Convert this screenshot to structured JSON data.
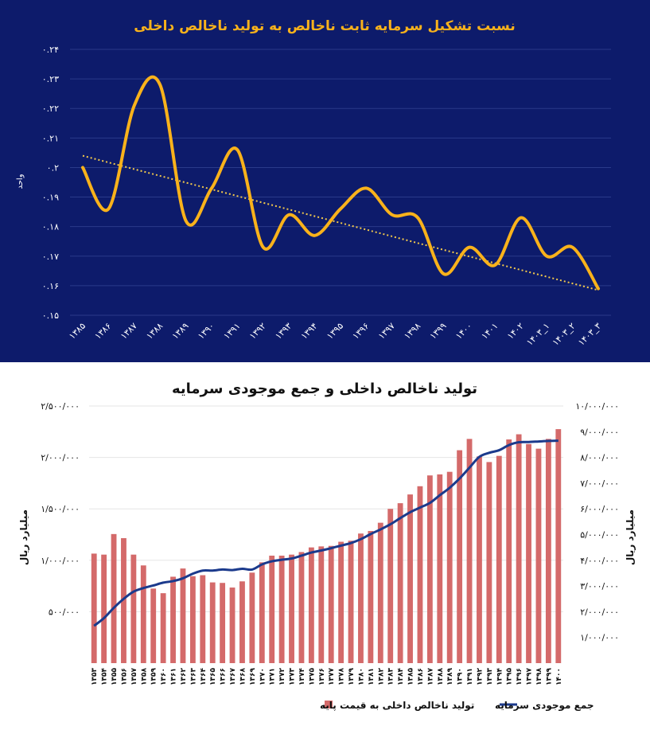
{
  "chart_data": [
    {
      "type": "line",
      "title": "نسبت تشکیل سرمایه ثابت ناخالص به تولید ناخالص داخلی",
      "ylabel": "واحد",
      "ylim": [
        0.15,
        0.24
      ],
      "ytick_labels": [
        "۰.۲۴",
        "۰.۲۳",
        "۰.۲۲",
        "۰.۲۱",
        "۰.۲",
        "۰.۱۹",
        "۰.۱۸",
        "۰.۱۷",
        "۰.۱۶",
        "۰.۱۵"
      ],
      "categories": [
        "۱۳۸۵",
        "۱۳۸۶",
        "۱۳۸۷",
        "۱۳۸۸",
        "۱۳۸۹",
        "۱۳۹۰",
        "۱۳۹۱",
        "۱۳۹۲",
        "۱۳۹۳",
        "۱۳۹۴",
        "۱۳۹۵",
        "۱۳۹۶",
        "۱۳۹۷",
        "۱۳۹۸",
        "۱۳۹۹",
        "۱۴۰۰",
        "۱۴۰۱",
        "۱۴۰۲",
        "۱۴۰۳_۱",
        "۱۴۰۳_۲",
        "۱۴۰۳_۳"
      ],
      "values": [
        0.2,
        0.186,
        0.221,
        0.228,
        0.182,
        0.193,
        0.206,
        0.173,
        0.184,
        0.177,
        0.186,
        0.193,
        0.184,
        0.183,
        0.164,
        0.173,
        0.167,
        0.183,
        0.17,
        0.173,
        0.159
      ],
      "trendline": [
        0.204,
        0.1585
      ],
      "colors": {
        "background": "#0d1b6b",
        "line": "#f9b21b",
        "trend": "#f2c94c",
        "text": "#ffffff",
        "title": "#f9b21b"
      },
      "grid": true
    },
    {
      "type": "bar",
      "title": "تولید ناخالص داخلی و جمع موجودی سرمایه",
      "left_ylabel": "میلیارد ریال",
      "right_ylabel": "میلیارد ریال",
      "left_ylim": [
        0,
        2500000
      ],
      "right_ylim": [
        0,
        10000000
      ],
      "left_tick_labels": [
        "۵۰۰/۰۰۰",
        "۱/۰۰۰/۰۰۰",
        "۱/۵۰۰/۰۰۰",
        "۲/۰۰۰/۰۰۰",
        "۲/۵۰۰/۰۰۰"
      ],
      "right_tick_labels": [
        "۱/۰۰۰/۰۰۰",
        "۲/۰۰۰/۰۰۰",
        "۳/۰۰۰/۰۰۰",
        "۴/۰۰۰/۰۰۰",
        "۵/۰۰۰/۰۰۰",
        "۶/۰۰۰/۰۰۰",
        "۷/۰۰۰/۰۰۰",
        "۸/۰۰۰/۰۰۰",
        "۹/۰۰۰/۰۰۰",
        "۱۰/۰۰۰/۰۰۰"
      ],
      "categories": [
        "۱۳۵۳",
        "۱۳۵۴",
        "۱۳۵۵",
        "۱۳۵۶",
        "۱۳۵۷",
        "۱۳۵۸",
        "۱۳۵۹",
        "۱۳۶۰",
        "۱۳۶۱",
        "۱۳۶۲",
        "۱۳۶۳",
        "۱۳۶۴",
        "۱۳۶۵",
        "۱۳۶۶",
        "۱۳۶۷",
        "۱۳۶۸",
        "۱۳۶۹",
        "۱۳۷۰",
        "۱۳۷۱",
        "۱۳۷۲",
        "۱۳۷۳",
        "۱۳۷۴",
        "۱۳۷۵",
        "۱۳۷۶",
        "۱۳۷۷",
        "۱۳۷۸",
        "۱۳۷۹",
        "۱۳۸۰",
        "۱۳۸۱",
        "۱۳۸۲",
        "۱۳۸۳",
        "۱۳۸۴",
        "۱۳۸۵",
        "۱۳۸۶",
        "۱۳۸۷",
        "۱۳۸۸",
        "۱۳۸۹",
        "۱۳۹۰",
        "۱۳۹۱",
        "۱۳۹۲",
        "۱۳۹۳",
        "۱۳۹۴",
        "۱۳۹۵",
        "۱۳۹۶",
        "۱۳۹۷",
        "۱۳۹۸",
        "۱۳۹۹",
        "۱۴۰۰"
      ],
      "series": [
        {
          "name": "تولید ناخالص داخلی به قیمت پایه",
          "axis": "left",
          "color": "#d46a6a",
          "values": [
            1065000,
            1055000,
            1255000,
            1215000,
            1055000,
            950000,
            725000,
            680000,
            840000,
            920000,
            845000,
            855000,
            785000,
            780000,
            735000,
            795000,
            880000,
            980000,
            1045000,
            1045000,
            1055000,
            1080000,
            1125000,
            1135000,
            1140000,
            1180000,
            1190000,
            1260000,
            1285000,
            1365000,
            1500000,
            1555000,
            1640000,
            1720000,
            1825000,
            1835000,
            1860000,
            2070000,
            2180000,
            2010000,
            1955000,
            2015000,
            2175000,
            2225000,
            2130000,
            2085000,
            2180000,
            2275000
          ]
        },
        {
          "name": "جمع موجودی سرمایه",
          "axis": "right",
          "color": "#1b3a8c",
          "values": [
            1450000,
            1750000,
            2150000,
            2500000,
            2780000,
            2920000,
            3020000,
            3130000,
            3190000,
            3300000,
            3480000,
            3600000,
            3600000,
            3640000,
            3620000,
            3670000,
            3640000,
            3840000,
            3960000,
            4020000,
            4070000,
            4180000,
            4300000,
            4380000,
            4470000,
            4570000,
            4670000,
            4820000,
            5020000,
            5200000,
            5400000,
            5640000,
            5870000,
            6050000,
            6230000,
            6530000,
            6820000,
            7180000,
            7600000,
            8020000,
            8180000,
            8280000,
            8480000,
            8590000,
            8600000,
            8620000,
            8640000,
            8650000
          ]
        }
      ],
      "grid": true,
      "legend": "bottom"
    }
  ]
}
